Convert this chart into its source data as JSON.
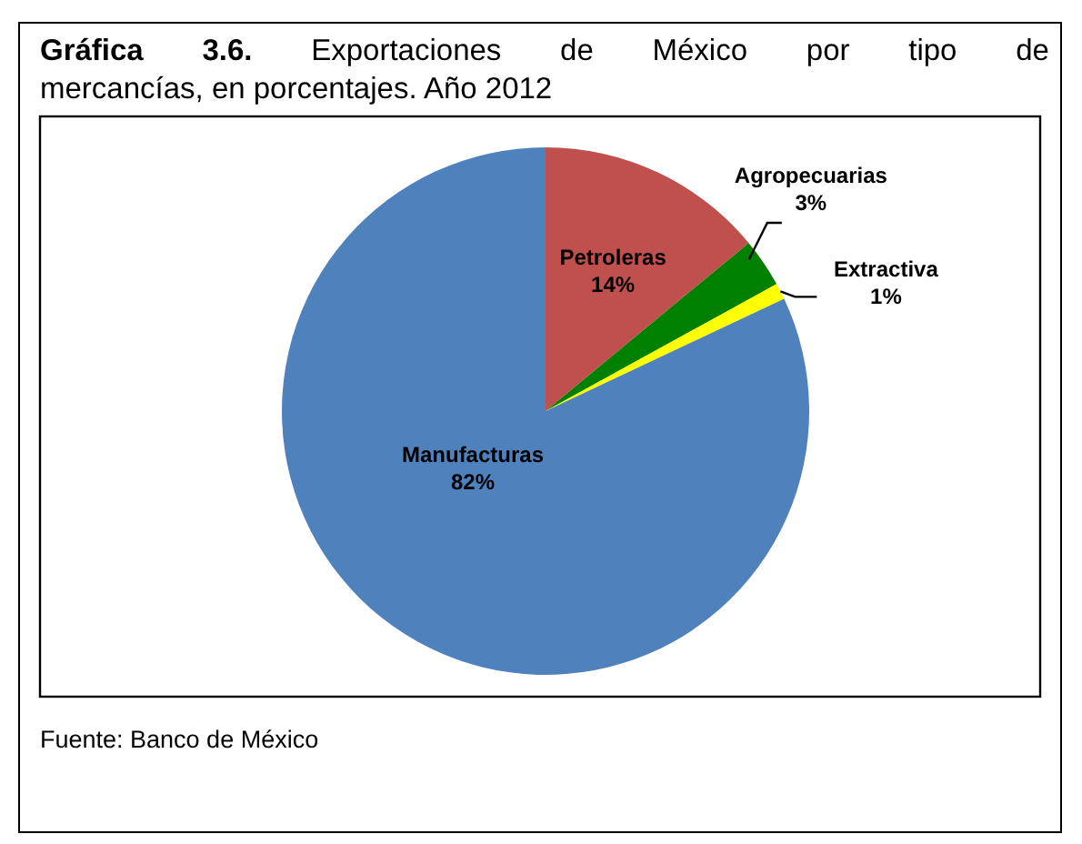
{
  "chart_data": {
    "type": "pie",
    "title": "Gráfica 3.6. Exportaciones de México por tipo de mercancías, en porcentajes. Año 2012",
    "categories": [
      "Petroleras",
      "Agropecuarias",
      "Extractiva",
      "Manufacturas"
    ],
    "values": [
      14,
      3,
      1,
      82
    ],
    "colors": [
      "#c0504d",
      "#008000",
      "#ffff00",
      "#4f81bd"
    ],
    "value_labels": [
      "14%",
      "3%",
      "1%",
      "82%"
    ],
    "annotations": [
      "Fuente: Banco de México"
    ]
  }
}
